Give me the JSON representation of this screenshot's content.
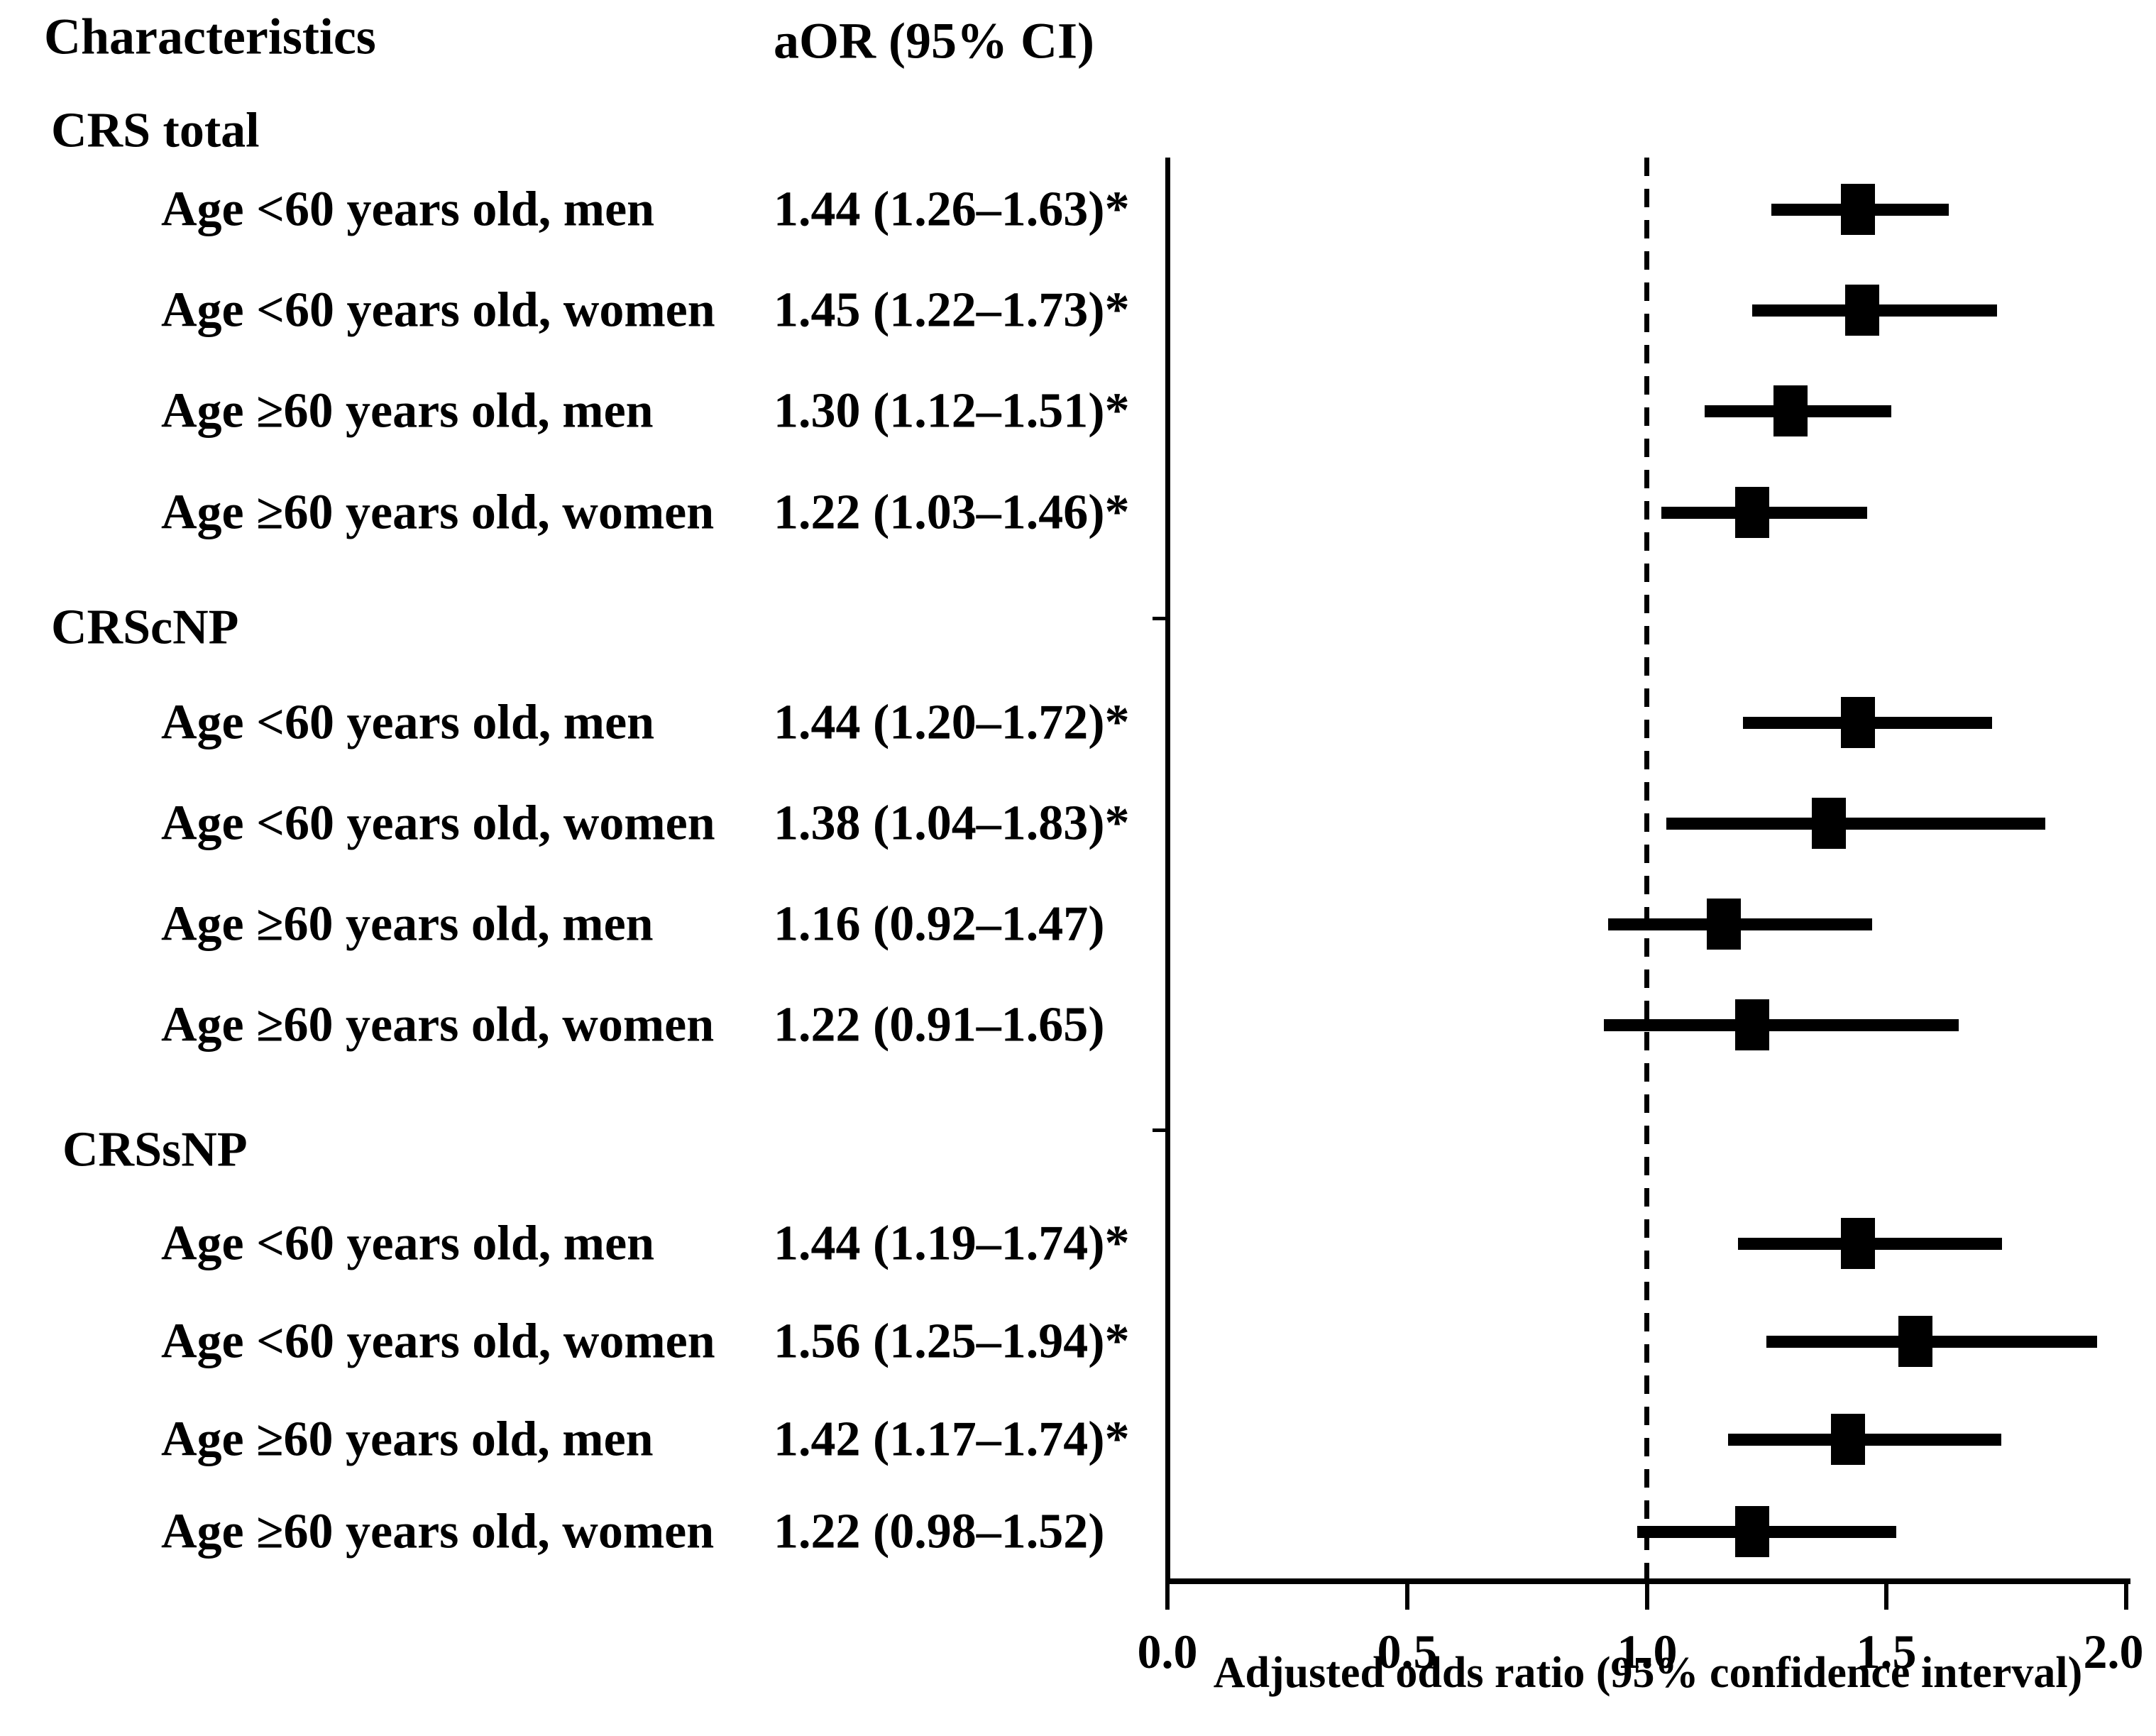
{
  "header": {
    "characteristics": "Characteristics",
    "aor": "aOR (95% CI)"
  },
  "colors": {
    "ink": "#000000",
    "background": "#ffffff"
  },
  "chart_data": {
    "type": "forest",
    "xlabel": "Adjusted odds ratio (95% confidence interval)",
    "xlim": [
      0.0,
      2.0
    ],
    "x_ticks": [
      0.0,
      0.5,
      1.0,
      1.5,
      2.0
    ],
    "x_tick_labels": [
      "0.0",
      "0.5",
      "1.0",
      "1.5",
      "2.0"
    ],
    "reference_line": 1.0,
    "legend_position": "none",
    "grid": false,
    "groups": [
      {
        "label": "CRS total",
        "rows": [
          {
            "label": "Age <60 years old, men",
            "aor_text": "1.44 (1.26–1.63)*",
            "est": 1.44,
            "lo": 1.26,
            "hi": 1.63,
            "significant": true
          },
          {
            "label": "Age <60 years old, women",
            "aor_text": "1.45 (1.22–1.73)*",
            "est": 1.45,
            "lo": 1.22,
            "hi": 1.73,
            "significant": true
          },
          {
            "label": "Age ≥60 years old, men",
            "aor_text": "1.30 (1.12–1.51)*",
            "est": 1.3,
            "lo": 1.12,
            "hi": 1.51,
            "significant": true
          },
          {
            "label": "Age ≥60 years old, women",
            "aor_text": "1.22 (1.03–1.46)*",
            "est": 1.22,
            "lo": 1.03,
            "hi": 1.46,
            "significant": true
          }
        ]
      },
      {
        "label": "CRScNP",
        "rows": [
          {
            "label": "Age <60 years old, men",
            "aor_text": "1.44 (1.20–1.72)*",
            "est": 1.44,
            "lo": 1.2,
            "hi": 1.72,
            "significant": true
          },
          {
            "label": "Age <60 years old, women",
            "aor_text": "1.38 (1.04–1.83)*",
            "est": 1.38,
            "lo": 1.04,
            "hi": 1.83,
            "significant": true
          },
          {
            "label": "Age ≥60 years old, men",
            "aor_text": "1.16 (0.92–1.47)",
            "est": 1.16,
            "lo": 0.92,
            "hi": 1.47,
            "significant": false
          },
          {
            "label": "Age ≥60 years old, women",
            "aor_text": "1.22 (0.91–1.65)",
            "est": 1.22,
            "lo": 0.91,
            "hi": 1.65,
            "significant": false
          }
        ]
      },
      {
        "label": "CRSsNP",
        "rows": [
          {
            "label": "Age <60 years old, men",
            "aor_text": "1.44 (1.19–1.74)*",
            "est": 1.44,
            "lo": 1.19,
            "hi": 1.74,
            "significant": true
          },
          {
            "label": "Age <60 years old, women",
            "aor_text": "1.56 (1.25–1.94)*",
            "est": 1.56,
            "lo": 1.25,
            "hi": 1.94,
            "significant": true
          },
          {
            "label": "Age ≥60 years old, men",
            "aor_text": "1.42 (1.17–1.74)*",
            "est": 1.42,
            "lo": 1.17,
            "hi": 1.74,
            "significant": true
          },
          {
            "label": "Age ≥60 years old, women",
            "aor_text": "1.22 (0.98–1.52)",
            "est": 1.22,
            "lo": 0.98,
            "hi": 1.52,
            "significant": false
          }
        ]
      }
    ]
  }
}
